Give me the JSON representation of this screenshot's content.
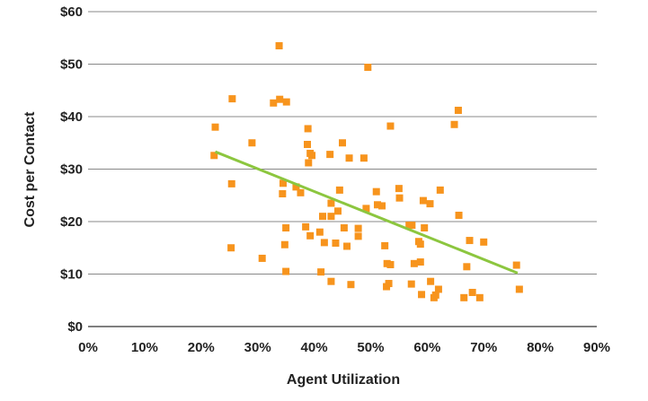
{
  "chart_data": {
    "type": "scatter",
    "xlabel": "Agent Utilization",
    "ylabel": "Cost per Contact",
    "xlim": [
      0,
      90
    ],
    "ylim": [
      0,
      60
    ],
    "x_ticks": [
      "0%",
      "10%",
      "20%",
      "30%",
      "40%",
      "50%",
      "60%",
      "70%",
      "80%",
      "90%"
    ],
    "y_ticks": [
      "$0",
      "$10",
      "$20",
      "$30",
      "$40",
      "$50",
      "$60"
    ],
    "grid": "horizontal",
    "marker_color": "#f7941d",
    "trendline_color": "#8cc63f",
    "points": [
      [
        22.5,
        38.0
      ],
      [
        22.3,
        32.6
      ],
      [
        25.5,
        43.4
      ],
      [
        25.4,
        27.2
      ],
      [
        25.3,
        15.0
      ],
      [
        29.0,
        35.0
      ],
      [
        30.8,
        13.0
      ],
      [
        32.8,
        42.6
      ],
      [
        33.8,
        53.5
      ],
      [
        33.9,
        43.3
      ],
      [
        34.5,
        27.3
      ],
      [
        34.4,
        25.3
      ],
      [
        35.1,
        42.8
      ],
      [
        35.0,
        18.8
      ],
      [
        34.8,
        15.6
      ],
      [
        35.0,
        10.5
      ],
      [
        36.8,
        26.6
      ],
      [
        37.6,
        25.5
      ],
      [
        38.5,
        19.0
      ],
      [
        38.9,
        37.7
      ],
      [
        38.8,
        34.7
      ],
      [
        39.3,
        33.0
      ],
      [
        39.0,
        31.2
      ],
      [
        39.6,
        32.6
      ],
      [
        39.3,
        17.3
      ],
      [
        41.0,
        18.0
      ],
      [
        41.2,
        10.4
      ],
      [
        41.5,
        21.0
      ],
      [
        41.8,
        16.0
      ],
      [
        42.8,
        32.8
      ],
      [
        43.0,
        23.5
      ],
      [
        43.0,
        21.0
      ],
      [
        43.0,
        8.6
      ],
      [
        43.8,
        15.9
      ],
      [
        44.2,
        22.0
      ],
      [
        44.5,
        26.0
      ],
      [
        45.0,
        35.0
      ],
      [
        45.3,
        18.8
      ],
      [
        45.8,
        15.3
      ],
      [
        46.2,
        32.1
      ],
      [
        46.5,
        8.0
      ],
      [
        47.8,
        18.7
      ],
      [
        47.8,
        17.2
      ],
      [
        48.8,
        32.1
      ],
      [
        49.5,
        49.4
      ],
      [
        49.2,
        22.5
      ],
      [
        51.0,
        25.7
      ],
      [
        51.2,
        23.2
      ],
      [
        52.0,
        23.0
      ],
      [
        52.5,
        15.4
      ],
      [
        52.9,
        12.0
      ],
      [
        52.8,
        7.6
      ],
      [
        53.2,
        8.2
      ],
      [
        53.5,
        38.2
      ],
      [
        53.5,
        11.8
      ],
      [
        55.0,
        26.3
      ],
      [
        55.1,
        24.5
      ],
      [
        56.8,
        19.3
      ],
      [
        57.3,
        19.3
      ],
      [
        57.2,
        8.1
      ],
      [
        57.7,
        12.0
      ],
      [
        58.5,
        16.2
      ],
      [
        58.8,
        15.7
      ],
      [
        58.8,
        12.3
      ],
      [
        59.0,
        6.1
      ],
      [
        59.3,
        24.0
      ],
      [
        59.5,
        18.8
      ],
      [
        60.5,
        23.4
      ],
      [
        60.6,
        8.6
      ],
      [
        61.2,
        5.5
      ],
      [
        61.5,
        6.0
      ],
      [
        62.0,
        7.1
      ],
      [
        62.3,
        26.0
      ],
      [
        64.8,
        38.5
      ],
      [
        65.5,
        41.2
      ],
      [
        65.6,
        21.2
      ],
      [
        66.5,
        5.5
      ],
      [
        67.0,
        11.4
      ],
      [
        67.5,
        16.4
      ],
      [
        68.0,
        6.5
      ],
      [
        69.3,
        5.5
      ],
      [
        70.0,
        16.1
      ],
      [
        75.8,
        11.7
      ],
      [
        76.3,
        7.1
      ]
    ],
    "trendline": [
      [
        22.5,
        33.3
      ],
      [
        76.0,
        10.2
      ]
    ]
  }
}
